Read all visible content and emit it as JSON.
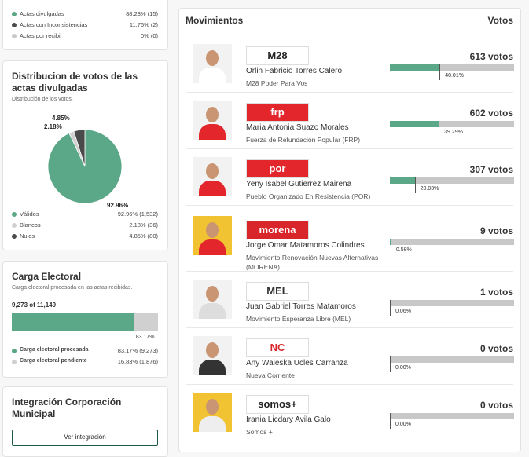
{
  "status": {
    "items": [
      {
        "label": "Actas divulgadas",
        "value": "88.23% (15)",
        "color": "#5aa887"
      },
      {
        "label": "Actas con Inconsistencias",
        "value": "11.76% (2)",
        "color": "#4a4a4a"
      },
      {
        "label": "Actas por recibir",
        "value": "0% (0)",
        "color": "#c8c8c8"
      }
    ]
  },
  "distribution": {
    "title": "Distribucion de votos de las actas divulgadas",
    "subtitle": "Distribución de los votos.",
    "chart_data": {
      "type": "pie",
      "categories": [
        "Válidos",
        "Blancos",
        "Nulos"
      ],
      "values": [
        92.96,
        2.18,
        4.85
      ],
      "value_labels": [
        "92.96%",
        "2.18%",
        "4.85%"
      ],
      "colors": [
        "#5aa887",
        "#d0d0d0",
        "#4a4a4a"
      ],
      "legend_values": [
        "92.96% (1,532)",
        "2.18% (36)",
        "4.85% (80)"
      ]
    }
  },
  "carga": {
    "title": "Carga Electoral",
    "subtitle": "Carga electoral procesada en las actas recibidas.",
    "count": "9,273 of 11,149",
    "chart_data": {
      "type": "bar",
      "categories": [
        "Carga electoral procesada",
        "Carga electoral pendiente"
      ],
      "values": [
        83.17,
        16.83
      ],
      "value_labels": [
        "83.17%",
        "16.83%"
      ],
      "colors": [
        "#5aa887",
        "#d0d0d0"
      ],
      "legend_values": [
        "83.17% (9,273)",
        "16.83% (1,876)"
      ]
    }
  },
  "integracion": {
    "title": "Integración Corporación Municipal",
    "button": "Ver integración"
  },
  "movimientos": {
    "title": "Movimientos",
    "votes_header": "Votos",
    "candidates": [
      {
        "name": "Orlin Fabricio Torres Calero",
        "party": "M28 Poder Para Vos",
        "logo": "M28",
        "logo_bg": "#ffffff",
        "logo_fg": "#222222",
        "votes": "613 votos",
        "percent": 40.01,
        "percent_label": "40.01%"
      },
      {
        "name": "Maria Antonia Suazo Morales",
        "party": "Fuerza de Refundación Popular (FRP)",
        "logo": "frp",
        "logo_bg": "#e3262b",
        "logo_fg": "#ffffff",
        "votes": "602 votos",
        "percent": 39.29,
        "percent_label": "39.29%"
      },
      {
        "name": "Yeny Isabel Gutierrez Mairena",
        "party": "Pueblo Organizado En Resistencia (POR)",
        "logo": "por",
        "logo_bg": "#e3262b",
        "logo_fg": "#ffffff",
        "votes": "307 votos",
        "percent": 20.03,
        "percent_label": "20.03%"
      },
      {
        "name": "Jorge Omar Matamoros Colindres",
        "party": "Movimiento Renovación Nuevas Alternativas (MORENA)",
        "logo": "morena",
        "logo_bg": "#d9262b",
        "logo_fg": "#ffffff",
        "votes": "9 votos",
        "percent": 0.58,
        "percent_label": "0.58%"
      },
      {
        "name": "Juan Gabriel Torres Matamoros",
        "party": "Movimiento Esperanza Libre (MEL)",
        "logo": "MEL",
        "logo_bg": "#ffffff",
        "logo_fg": "#333333",
        "votes": "1 votos",
        "percent": 0.06,
        "percent_label": "0.06%"
      },
      {
        "name": "Any Waleska Ucles Carranza",
        "party": "Nueva Corriente",
        "logo": "NC",
        "logo_bg": "#ffffff",
        "logo_fg": "#d9262b",
        "votes": "0 votos",
        "percent": 0,
        "percent_label": "0.00%"
      },
      {
        "name": "Irania Licdary Avila Galo",
        "party": "Somos +",
        "logo": "somos+",
        "logo_bg": "#ffffff",
        "logo_fg": "#222222",
        "votes": "0 votos",
        "percent": 0,
        "percent_label": "0.00%"
      }
    ]
  }
}
